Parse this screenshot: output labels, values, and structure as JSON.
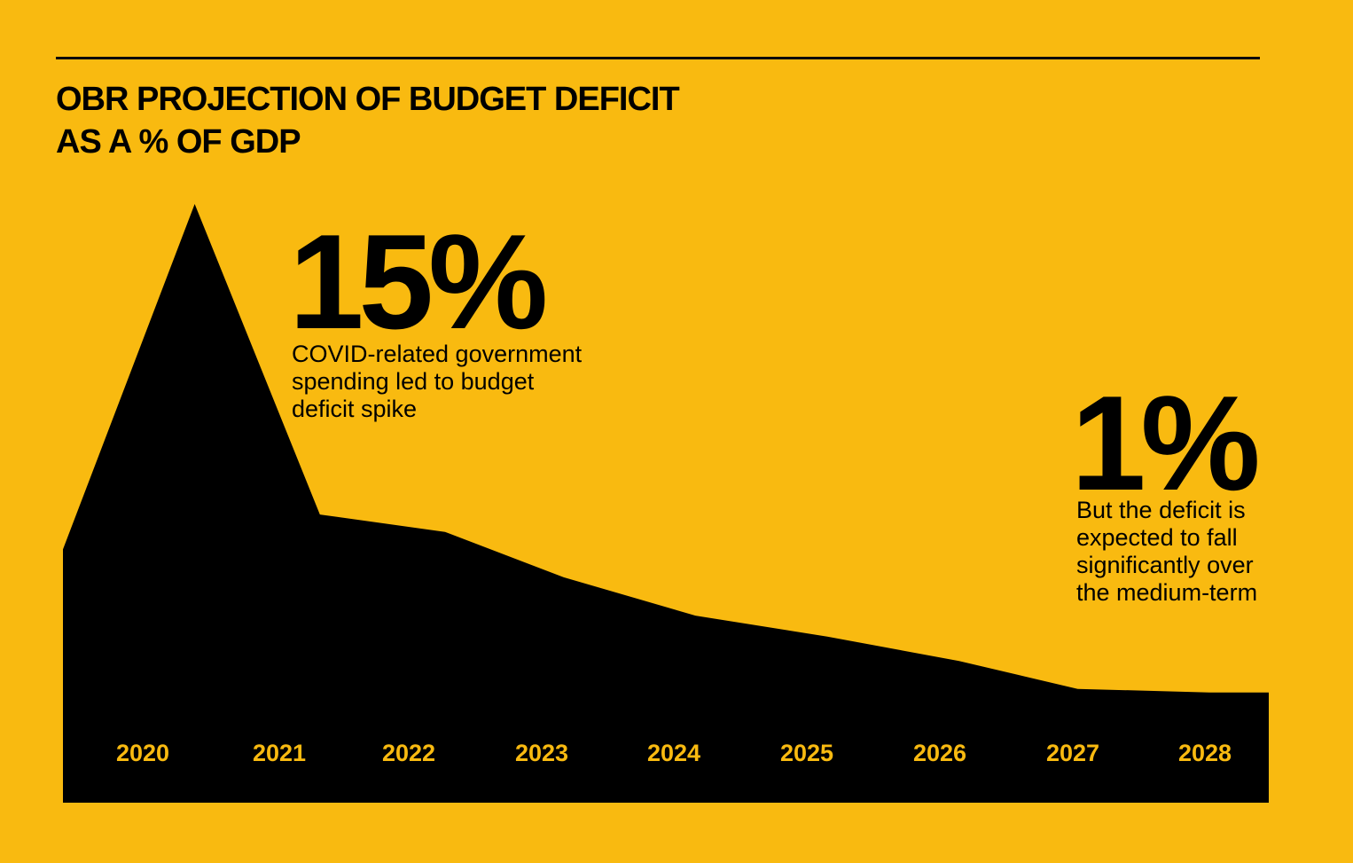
{
  "title": {
    "line1": "OBR PROJECTION OF BUDGET DEFICIT",
    "line2": "AS A % OF GDP"
  },
  "colors": {
    "background": "#F9BA10",
    "area": "#000000",
    "tick_label": "#F9BA10"
  },
  "annotations": [
    {
      "value": "15%",
      "lines": [
        "COVID-related government",
        "spending led to budget",
        "deficit spike"
      ]
    },
    {
      "value": "1%",
      "lines": [
        "But the deficit is",
        "expected to fall",
        "significantly over",
        "the medium-term"
      ]
    }
  ],
  "chart_data": {
    "type": "area",
    "title": "OBR PROJECTION OF BUDGET DEFICIT AS A % OF GDP",
    "xlabel": "",
    "ylabel": "",
    "categories": [
      "2020",
      "2021",
      "2022",
      "2023",
      "2024",
      "2025",
      "2026",
      "2027",
      "2028"
    ],
    "x": [
      2019.4,
      2020.4,
      2021.35,
      2022.3,
      2023.2,
      2024.2,
      2025.2,
      2026.2,
      2027.1,
      2028.1,
      2028.55
    ],
    "values": [
      5.1,
      15.0,
      6.1,
      5.6,
      4.3,
      3.2,
      2.6,
      1.9,
      1.1,
      1.0,
      1.0
    ],
    "ylim": [
      0,
      15
    ],
    "grid": false,
    "legend": "none"
  }
}
